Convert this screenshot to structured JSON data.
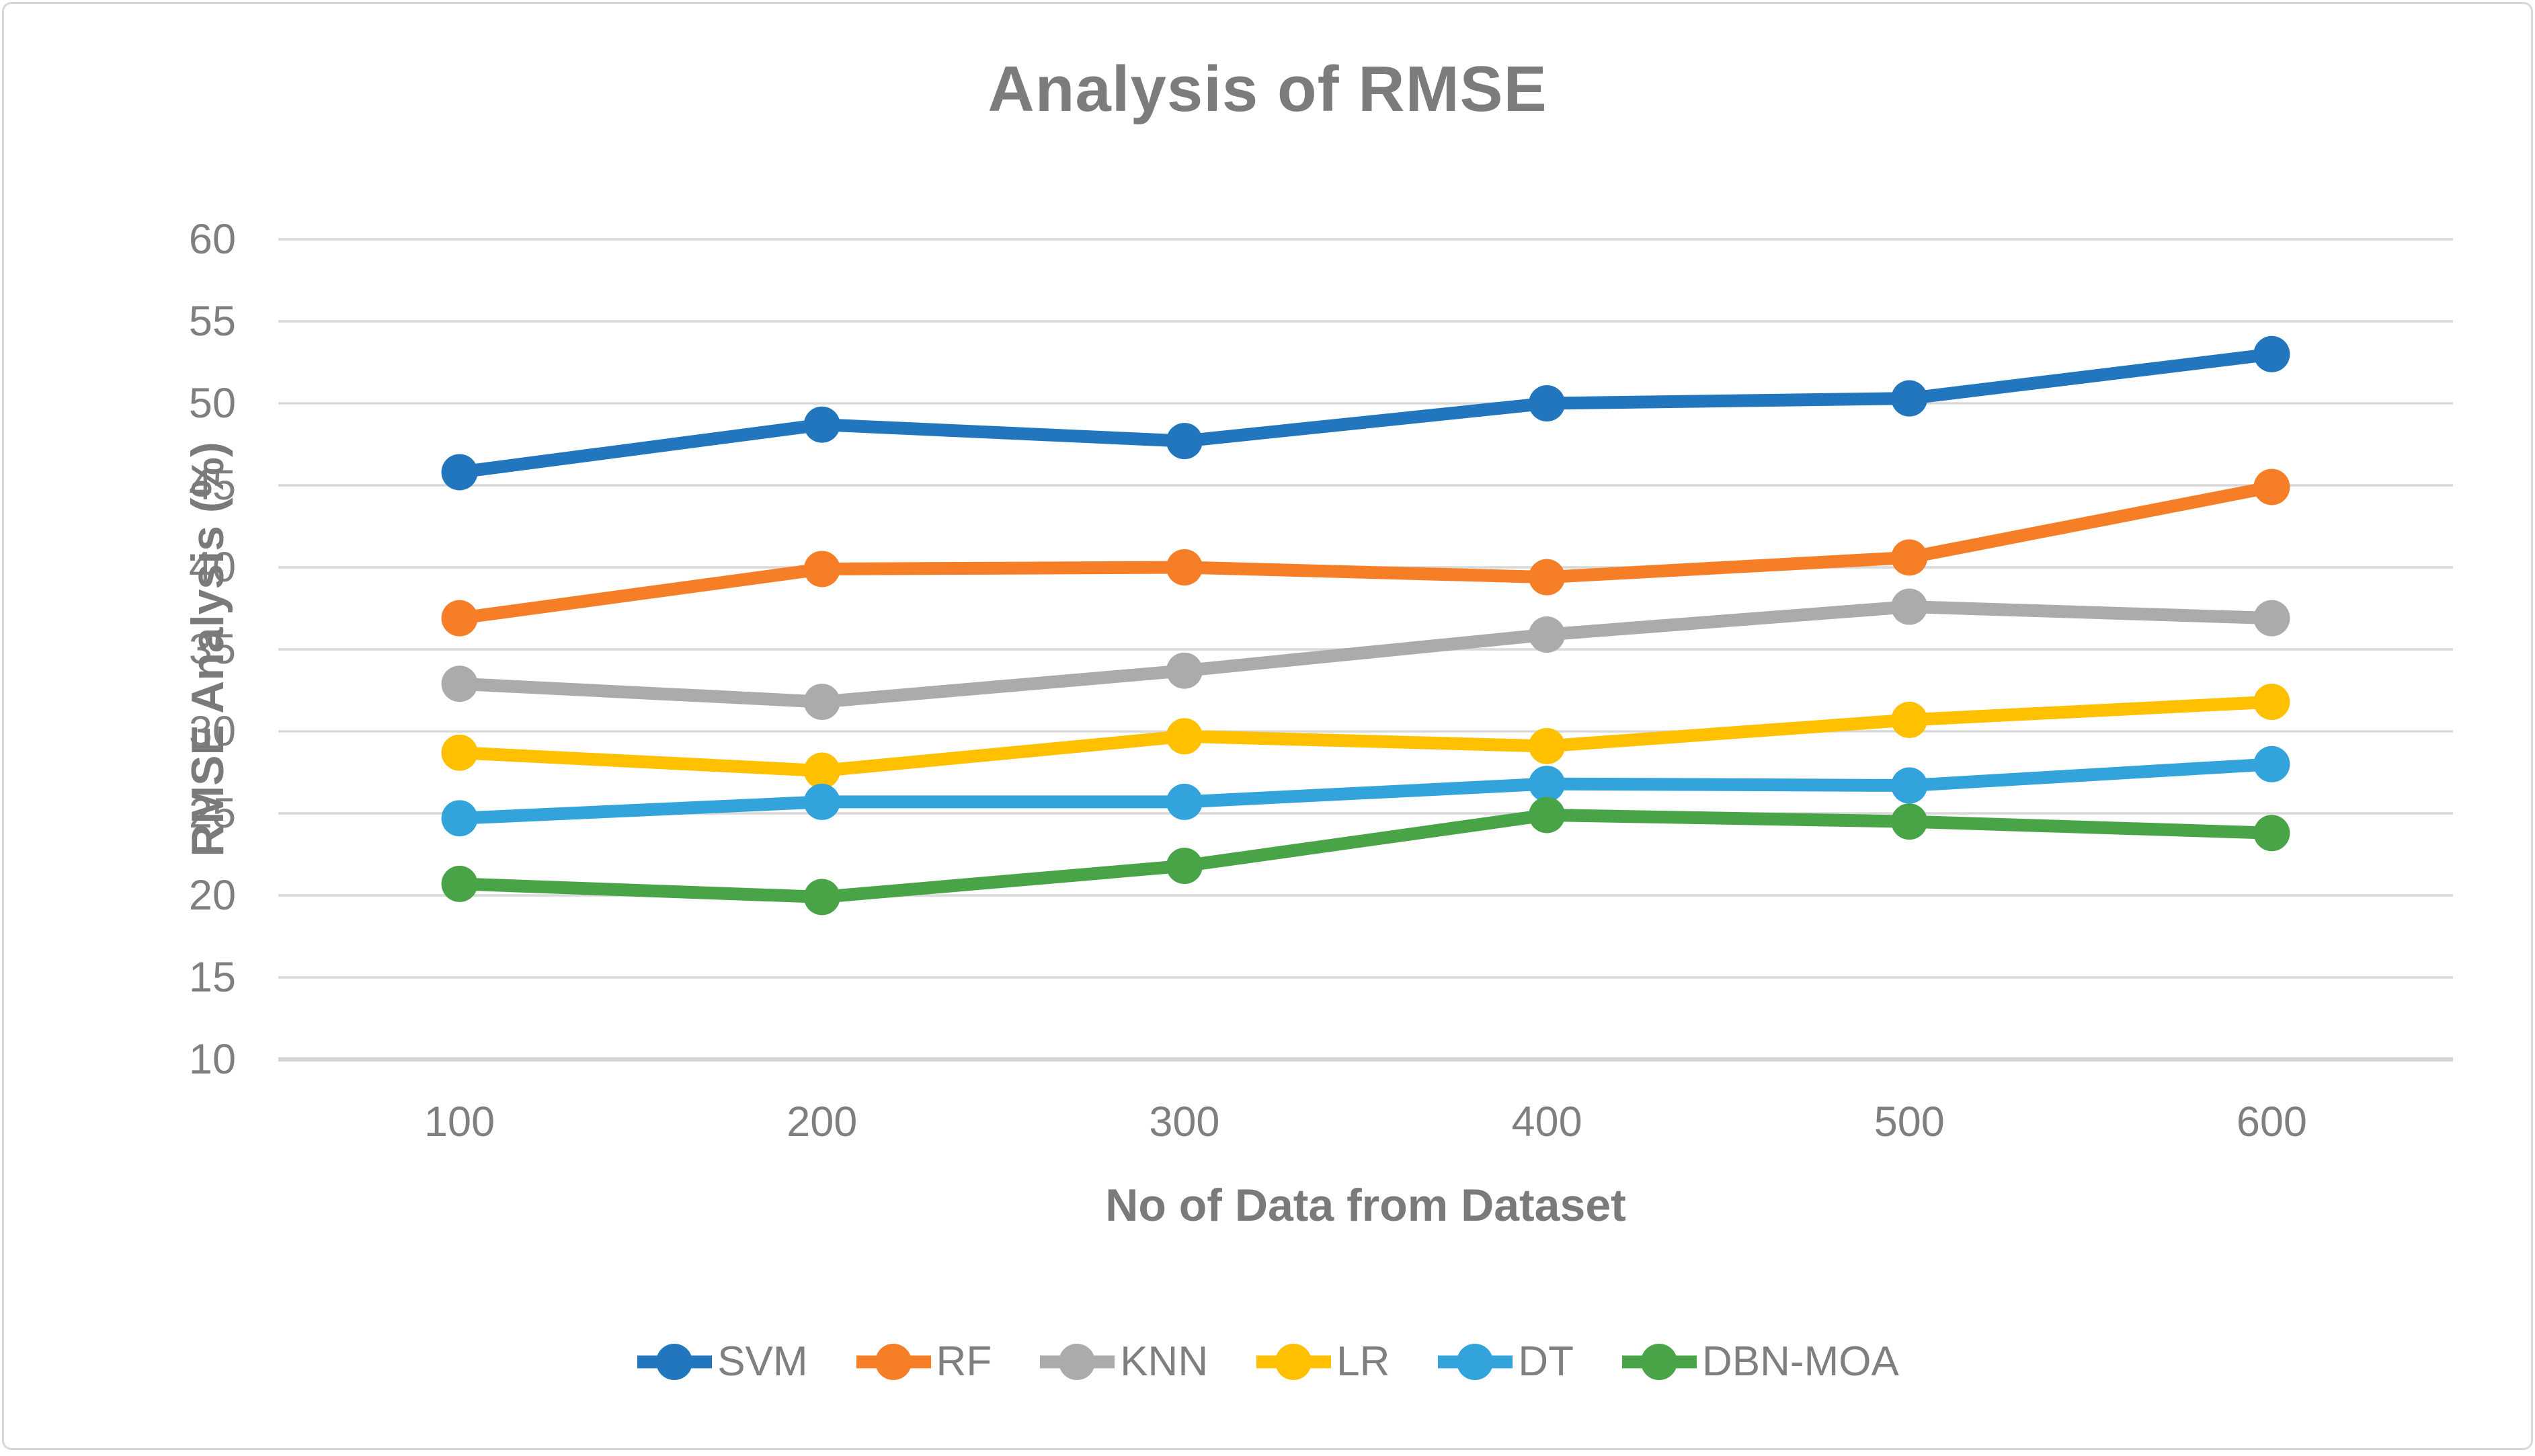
{
  "figure": {
    "title": "Analysis of RMSE"
  },
  "chart_data": {
    "type": "line",
    "title": "Analysis of RMSE",
    "xlabel": "No of Data from Dataset",
    "ylabel": "RMSE Analysis (%)",
    "categories": [
      100,
      200,
      300,
      400,
      500,
      600
    ],
    "y_ticks": [
      60,
      55,
      50,
      45,
      40,
      35,
      30,
      25,
      20,
      15,
      10
    ],
    "ylim": [
      10,
      60
    ],
    "grid": true,
    "legend_position": "bottom",
    "series": [
      {
        "name": "SVM",
        "color": "#2176BD",
        "values": [
          45.8,
          48.7,
          47.7,
          50.0,
          50.3,
          53.0
        ]
      },
      {
        "name": "RF",
        "color": "#F57E27",
        "values": [
          36.9,
          39.9,
          40.0,
          39.4,
          40.6,
          44.9
        ]
      },
      {
        "name": "KNN",
        "color": "#ABABAB",
        "values": [
          32.9,
          31.8,
          33.7,
          35.9,
          37.6,
          36.9
        ]
      },
      {
        "name": "LR",
        "color": "#FFC000",
        "values": [
          28.7,
          27.6,
          29.7,
          29.1,
          30.7,
          31.8
        ]
      },
      {
        "name": "DT",
        "color": "#32A3DB",
        "values": [
          24.7,
          25.7,
          25.7,
          26.8,
          26.7,
          28.0
        ]
      },
      {
        "name": "DBN-MOA",
        "color": "#48A447",
        "values": [
          20.7,
          19.9,
          21.8,
          24.9,
          24.5,
          23.8
        ]
      }
    ],
    "gridline_color": "#D9D9D9",
    "axisline_color": "#D3D3D3",
    "text_color": "#7F7F7F"
  }
}
